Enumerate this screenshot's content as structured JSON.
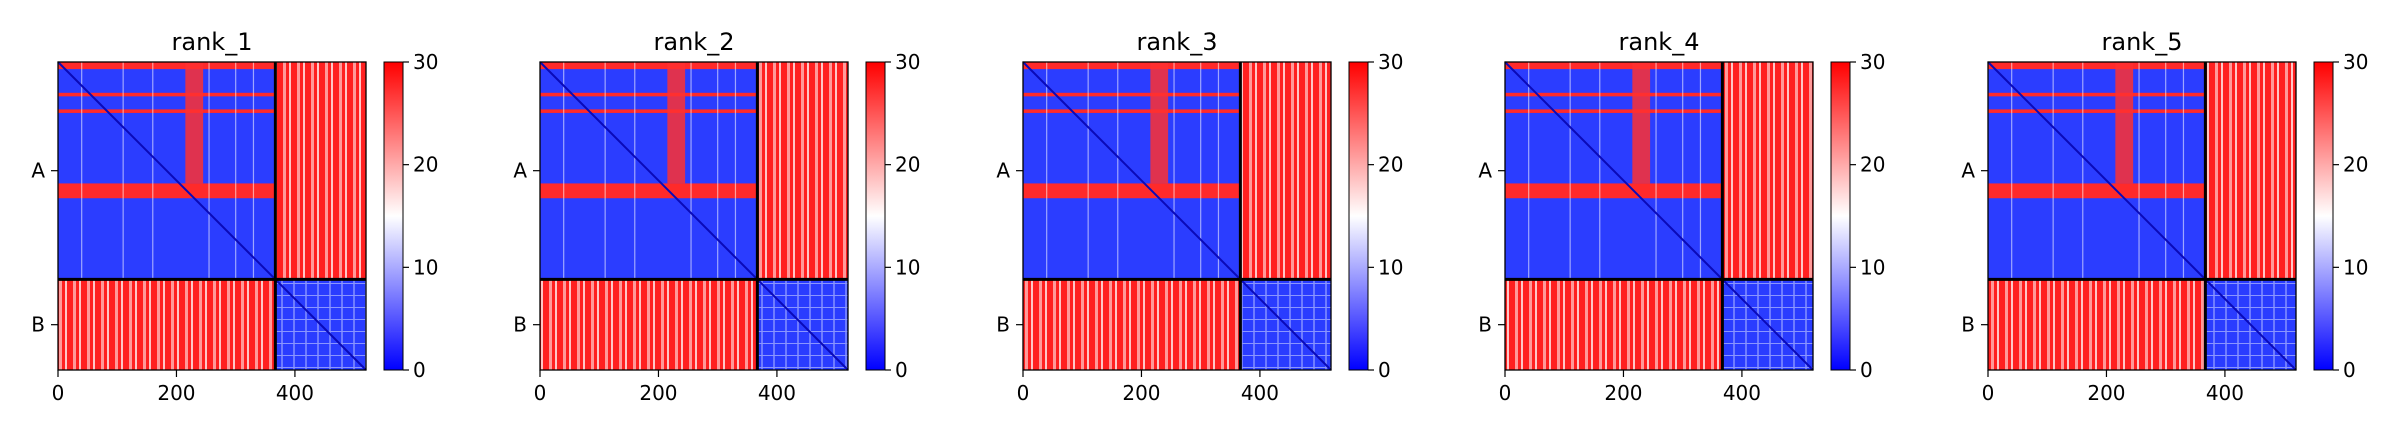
{
  "colors": {
    "low": "#0000ff",
    "mid": "#ffffff",
    "high": "#ff0000",
    "axis": "#000000"
  },
  "chart_data": [
    {
      "type": "heatmap",
      "title": "rank_1",
      "x_ticks": [
        0,
        200,
        400
      ],
      "xlim": [
        0,
        520
      ],
      "y_tick_labels": [
        "A",
        "B"
      ],
      "chain_boundary": 367,
      "colorbar": {
        "min": 0,
        "max": 30,
        "ticks": [
          0,
          10,
          20,
          30
        ]
      }
    },
    {
      "type": "heatmap",
      "title": "rank_2",
      "x_ticks": [
        0,
        200,
        400
      ],
      "xlim": [
        0,
        520
      ],
      "y_tick_labels": [
        "A",
        "B"
      ],
      "chain_boundary": 367,
      "colorbar": {
        "min": 0,
        "max": 30,
        "ticks": [
          0,
          10,
          20,
          30
        ]
      }
    },
    {
      "type": "heatmap",
      "title": "rank_3",
      "x_ticks": [
        0,
        200,
        400
      ],
      "xlim": [
        0,
        520
      ],
      "y_tick_labels": [
        "A",
        "B"
      ],
      "chain_boundary": 367,
      "colorbar": {
        "min": 0,
        "max": 30,
        "ticks": [
          0,
          10,
          20,
          30
        ]
      }
    },
    {
      "type": "heatmap",
      "title": "rank_4",
      "x_ticks": [
        0,
        200,
        400
      ],
      "xlim": [
        0,
        520
      ],
      "y_tick_labels": [
        "A",
        "B"
      ],
      "chain_boundary": 367,
      "colorbar": {
        "min": 0,
        "max": 30,
        "ticks": [
          0,
          10,
          20,
          30
        ]
      }
    },
    {
      "type": "heatmap",
      "title": "rank_5",
      "x_ticks": [
        0,
        200,
        400
      ],
      "xlim": [
        0,
        520
      ],
      "y_tick_labels": [
        "A",
        "B"
      ],
      "chain_boundary": 367,
      "colorbar": {
        "min": 0,
        "max": 30,
        "ticks": [
          0,
          10,
          20,
          30
        ]
      }
    }
  ]
}
